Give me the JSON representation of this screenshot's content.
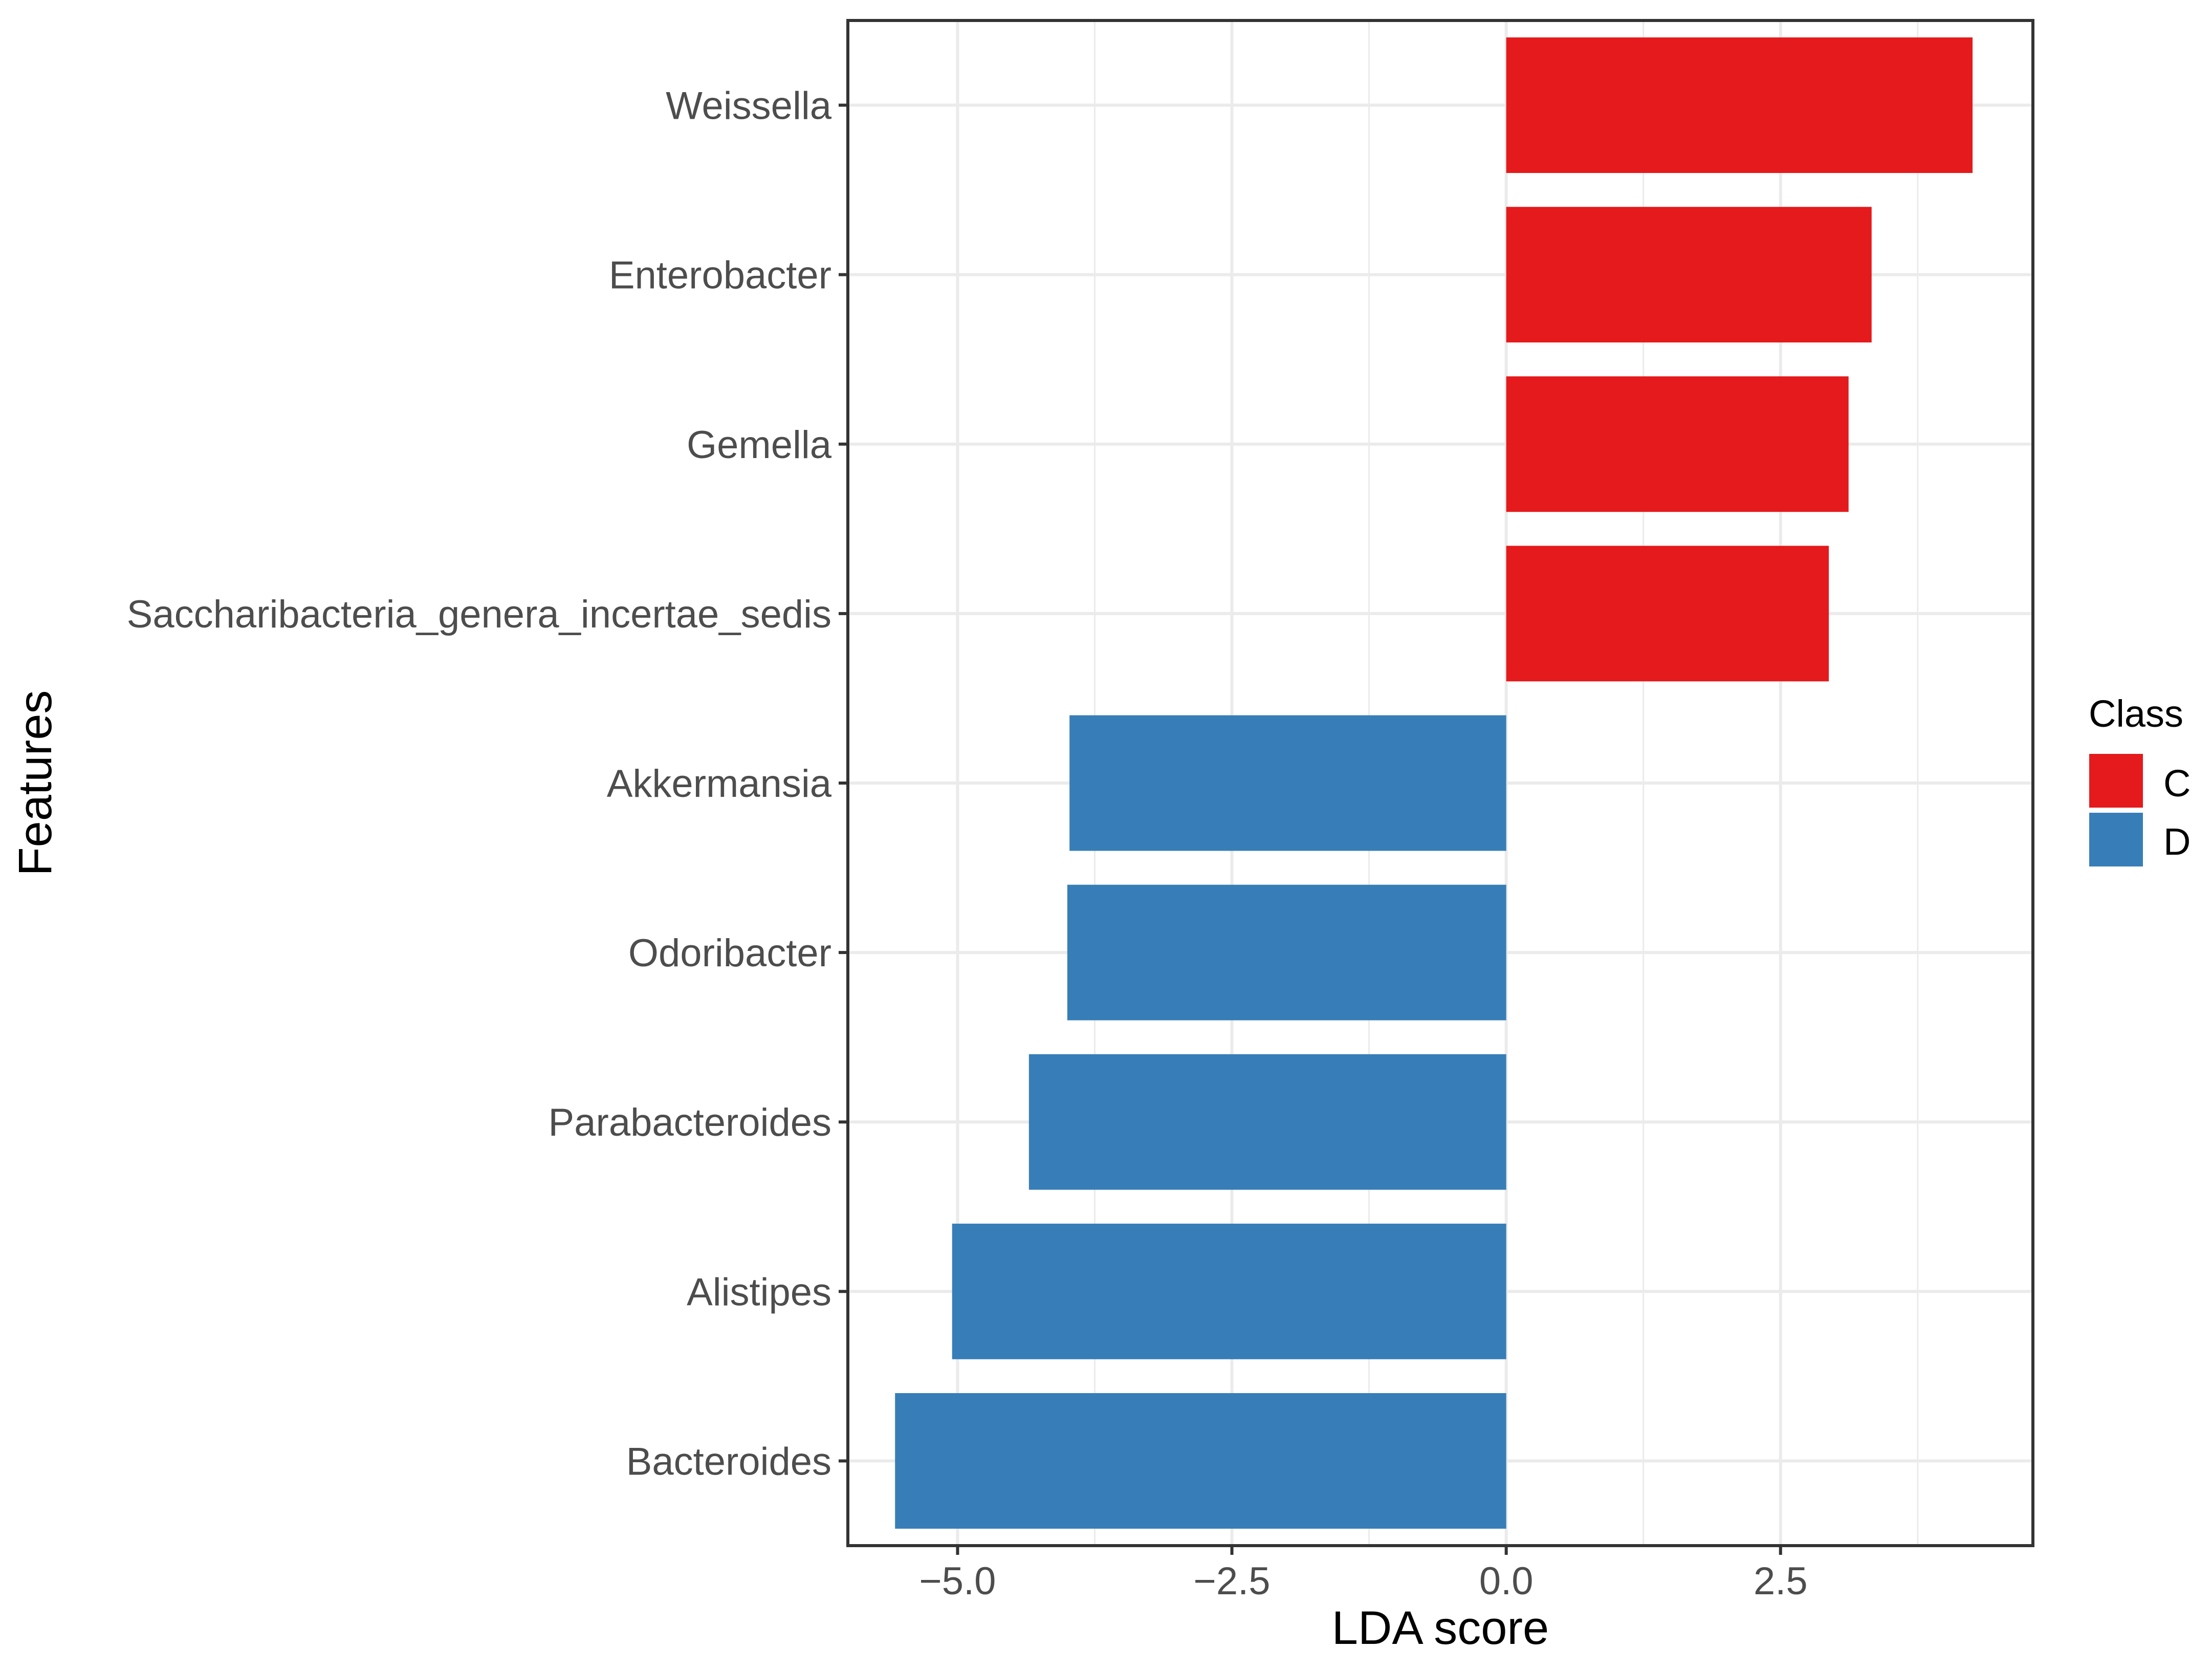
{
  "chart_data": {
    "type": "bar",
    "orientation": "horizontal",
    "xlabel": "LDA score",
    "ylabel": "Features",
    "xlim": [
      -6.0,
      4.8
    ],
    "xticks": [
      -5.0,
      -2.5,
      0.0,
      2.5
    ],
    "xtick_labels": [
      "−5.0",
      "−2.5",
      "0.0",
      "2.5"
    ],
    "grid": true,
    "categories": [
      "Weissella",
      "Enterobacter",
      "Gemella",
      "Saccharibacteria_genera_incertae_sedis",
      "Akkermansia",
      "Odoribacter",
      "Parabacteroides",
      "Alistipes",
      "Bacteroides"
    ],
    "values": [
      4.25,
      3.33,
      3.12,
      2.94,
      -3.98,
      -4.0,
      -4.35,
      -5.05,
      -5.57
    ],
    "classes": [
      "C",
      "C",
      "C",
      "C",
      "D",
      "D",
      "D",
      "D",
      "D"
    ],
    "legend": {
      "title": "Class",
      "position": "right",
      "entries": [
        {
          "label": "C",
          "color": "#E41A1C"
        },
        {
          "label": "D",
          "color": "#377EB8"
        }
      ]
    }
  }
}
